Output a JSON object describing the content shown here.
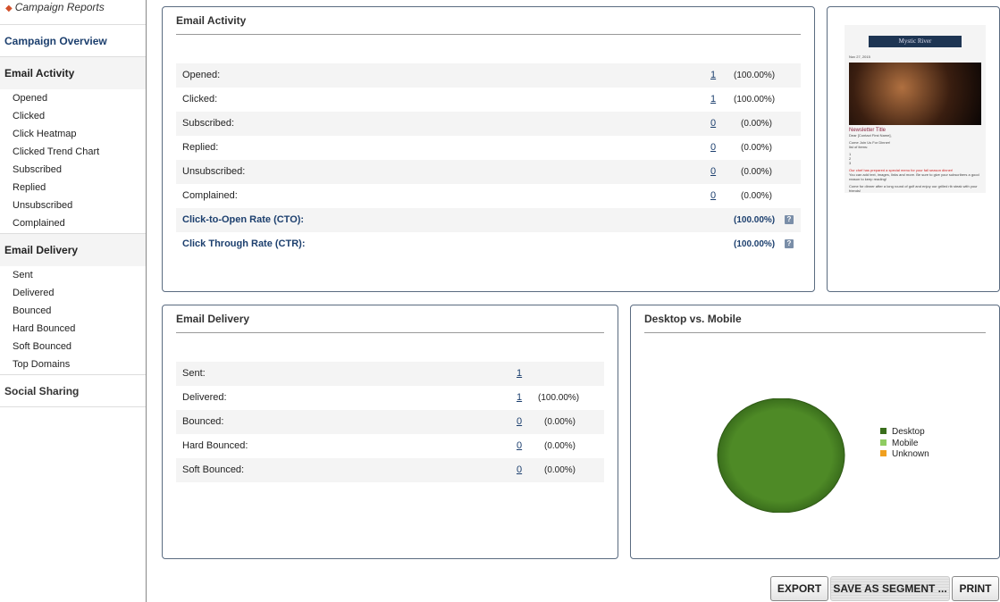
{
  "sidebar": {
    "back_label": "Campaign Reports",
    "overview": "Campaign Overview",
    "email_activity": {
      "title": "Email Activity",
      "items": [
        "Opened",
        "Clicked",
        "Click Heatmap",
        "Clicked Trend Chart",
        "Subscribed",
        "Replied",
        "Unsubscribed",
        "Complained"
      ]
    },
    "email_delivery": {
      "title": "Email Delivery",
      "items": [
        "Sent",
        "Delivered",
        "Bounced",
        "Hard Bounced",
        "Soft Bounced",
        "Top Domains"
      ]
    },
    "social": "Social Sharing"
  },
  "activity": {
    "title": "Email Activity",
    "rows": [
      {
        "label": "Opened:",
        "value": "1",
        "pct": "(100.00%)"
      },
      {
        "label": "Clicked:",
        "value": "1",
        "pct": "(100.00%)"
      },
      {
        "label": "Subscribed:",
        "value": "0",
        "pct": "(0.00%)"
      },
      {
        "label": "Replied:",
        "value": "0",
        "pct": "(0.00%)"
      },
      {
        "label": "Unsubscribed:",
        "value": "0",
        "pct": "(0.00%)"
      },
      {
        "label": "Complained:",
        "value": "0",
        "pct": "(0.00%)"
      }
    ],
    "rates": [
      {
        "label": "Click-to-Open Rate (CTO):",
        "pct": "(100.00%)"
      },
      {
        "label": "Click Through Rate (CTR):",
        "pct": "(100.00%)"
      }
    ]
  },
  "preview": {
    "brand": "Mystic River",
    "date": "Nov 27, 2015",
    "title": "Newsletter Title",
    "greeting": "Dear [Contact First Name],",
    "line1": "Come Join Us For Dinner!",
    "line2": "list of items:",
    "items": [
      "1",
      "2",
      "3"
    ],
    "highlight": "Our chef has prepared a special menu for your fall season dinner!",
    "body": "You can add text, images, links and more. Be sure to give your subscribers a good reason to keep reading!",
    "footer": "Come for dinner after a long round of golf and enjoy our grilled rib steak with your friends!"
  },
  "delivery": {
    "title": "Email Delivery",
    "rows": [
      {
        "label": "Sent:",
        "value": "1",
        "pct": ""
      },
      {
        "label": "Delivered:",
        "value": "1",
        "pct": "(100.00%)"
      },
      {
        "label": "Bounced:",
        "value": "0",
        "pct": "(0.00%)"
      },
      {
        "label": "Hard Bounced:",
        "value": "0",
        "pct": "(0.00%)"
      },
      {
        "label": "Soft Bounced:",
        "value": "0",
        "pct": "(0.00%)"
      }
    ]
  },
  "chart_data": {
    "type": "pie",
    "title": "Desktop vs. Mobile",
    "categories": [
      "Desktop",
      "Mobile",
      "Unknown"
    ],
    "values": [
      100,
      0,
      0
    ],
    "colors": [
      "#3a6e1c",
      "#8fcc62",
      "#f0a020"
    ],
    "legend": "right"
  },
  "buttons": {
    "export": "EXPORT",
    "segment": "SAVE AS SEGMENT ...",
    "print": "PRINT"
  }
}
